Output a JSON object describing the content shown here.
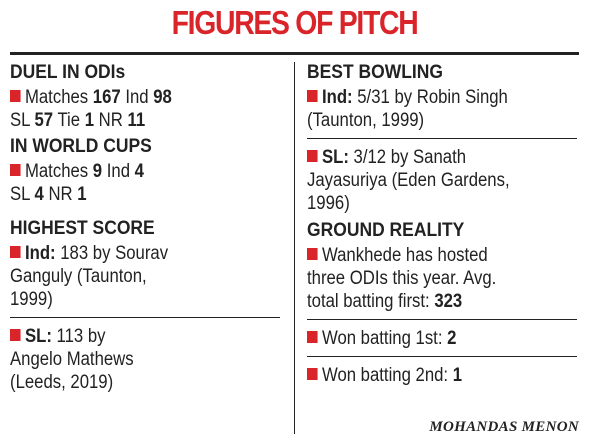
{
  "title": "FIGURES OF PITCH",
  "left": {
    "duel_head": "DUEL IN ODIs",
    "duel_matches_label": "Matches",
    "duel_matches_val": "167",
    "duel_ind_label": "Ind",
    "duel_ind_val": "98",
    "duel_sl_label": "SL",
    "duel_sl_val": "57",
    "duel_tie_label": "Tie",
    "duel_tie_val": "1",
    "duel_nr_label": "NR",
    "duel_nr_val": "11",
    "wc_head": "IN WORLD CUPS",
    "wc_matches_label": "Matches",
    "wc_matches_val": "9",
    "wc_ind_label": "Ind",
    "wc_ind_val": "4",
    "wc_sl_label": "SL",
    "wc_sl_val": "4",
    "wc_nr_label": "NR",
    "wc_nr_val": "1",
    "hs_head": "HIGHEST SCORE",
    "hs_ind_label": "Ind:",
    "hs_ind_line1": "183 by Sourav",
    "hs_ind_line2": "Ganguly (Taunton,",
    "hs_ind_line3": "1999)",
    "hs_sl_label": "SL:",
    "hs_sl_line1": "113 by",
    "hs_sl_line2": "Angelo Mathews",
    "hs_sl_line3": "(Leeds, 2019)"
  },
  "right": {
    "bb_head": "BEST BOWLING",
    "bb_ind_label": "Ind:",
    "bb_ind_line1": "5/31 by Robin Singh",
    "bb_ind_line2": "(Taunton, 1999)",
    "bb_sl_label": "SL:",
    "bb_sl_line1": "3/12 by Sanath",
    "bb_sl_line2": "Jayasuriya (Eden Gardens,",
    "bb_sl_line3": "1996)",
    "gr_head": "GROUND REALITY",
    "gr_line1": "Wankhede has hosted",
    "gr_line2": "three ODIs this year. Avg.",
    "gr_line3": "total batting first:",
    "gr_val": "323",
    "won1_label": "Won batting 1st:",
    "won1_val": "2",
    "won2_label": "Won batting 2nd:",
    "won2_val": "1"
  },
  "byline": "MOHANDAS MENON",
  "colors": {
    "accent": "#d9252a",
    "text": "#222222"
  }
}
